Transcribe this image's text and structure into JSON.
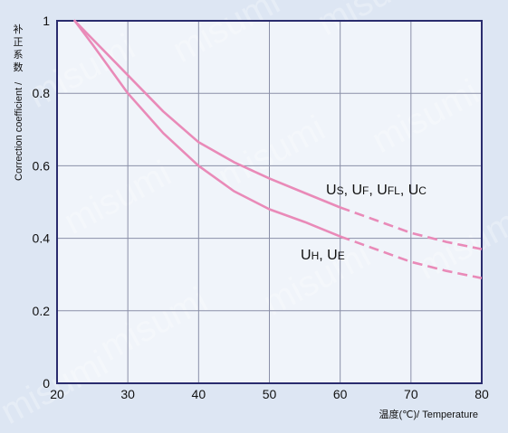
{
  "chart_data": {
    "type": "line",
    "xlabel": "温度(℃)/ Temperature",
    "ylabel": "Correction coefficient / 补正系数",
    "ylabel_cjk": [
      "补",
      "正",
      "系",
      "数"
    ],
    "ylabel_en": "Correction coefficient /",
    "xlim": [
      20,
      80
    ],
    "ylim": [
      0,
      1
    ],
    "x_ticks": [
      20,
      30,
      40,
      50,
      60,
      70,
      80
    ],
    "y_ticks": [
      0,
      0.2,
      0.4,
      0.6,
      0.8,
      1
    ],
    "y_tick_labels": [
      "0",
      "0.2",
      "0.4",
      "0.6",
      "0.8",
      "1"
    ],
    "grid": true,
    "line_color": "#e98ab8",
    "watermark": "misumi",
    "series": [
      {
        "label_parts": [
          {
            "main": "U",
            "sub": "S",
            "sep": ", "
          },
          {
            "main": "U",
            "sub": "F",
            "sep": ", "
          },
          {
            "main": "U",
            "sub": "FL",
            "sep": ", "
          },
          {
            "main": "U",
            "sub": "C",
            "sep": ""
          }
        ],
        "solid": {
          "x": [
            22.5,
            25,
            30,
            35,
            40,
            45,
            50,
            55,
            60
          ],
          "y": [
            1.0,
            0.95,
            0.85,
            0.75,
            0.665,
            0.61,
            0.565,
            0.525,
            0.485
          ]
        },
        "dashed": {
          "x": [
            60,
            65,
            70,
            75,
            80
          ],
          "y": [
            0.485,
            0.45,
            0.415,
            0.39,
            0.37
          ]
        }
      },
      {
        "label_parts": [
          {
            "main": "U",
            "sub": "H",
            "sep": ", "
          },
          {
            "main": "U",
            "sub": "E",
            "sep": ""
          }
        ],
        "solid": {
          "x": [
            22.5,
            25,
            30,
            35,
            40,
            45,
            50,
            55,
            60
          ],
          "y": [
            1.0,
            0.935,
            0.8,
            0.69,
            0.6,
            0.53,
            0.48,
            0.445,
            0.405
          ]
        },
        "dashed": {
          "x": [
            60,
            65,
            70,
            75,
            80
          ],
          "y": [
            0.405,
            0.37,
            0.335,
            0.31,
            0.29
          ]
        }
      }
    ]
  }
}
